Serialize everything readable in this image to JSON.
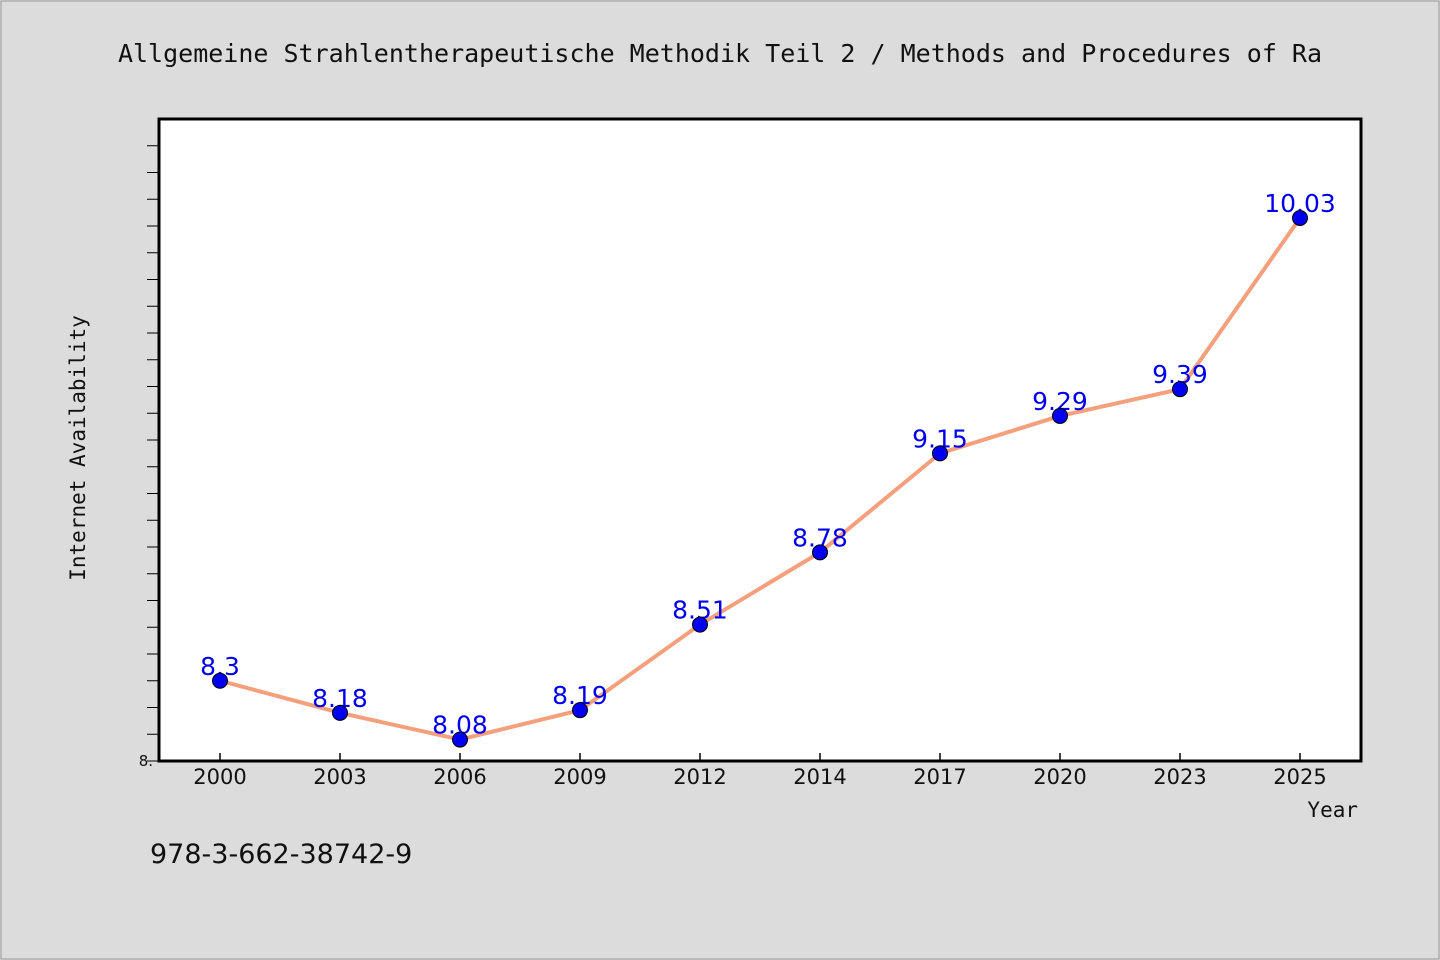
{
  "chart_data": {
    "type": "line",
    "title": "Allgemeine Strahlentherapeutische Methodik Teil 2 / Methods and Procedures of Ra",
    "xlabel": "Year",
    "ylabel": "Internet Availability",
    "categories": [
      "2000",
      "2003",
      "2006",
      "2009",
      "2012",
      "2014",
      "2017",
      "2020",
      "2023",
      "2025"
    ],
    "series": [
      {
        "values": [
          8.3,
          8.18,
          8.08,
          8.19,
          8.51,
          8.78,
          9.15,
          9.29,
          9.39,
          10.03
        ],
        "labels": [
          "8.3",
          "8.18",
          "8.08",
          "8.19",
          "8.51",
          "8.78",
          "9.15",
          "9.29",
          "9.39",
          "10.03"
        ]
      }
    ],
    "ylim": [
      8.0,
      10.4
    ],
    "y_tick_labels": [
      "8."
    ],
    "line_color": "#f4a07c",
    "marker_color": "#0000ee",
    "label_color": "#0000ee",
    "grid": false
  },
  "footer_text": "978-3-662-38742-9"
}
